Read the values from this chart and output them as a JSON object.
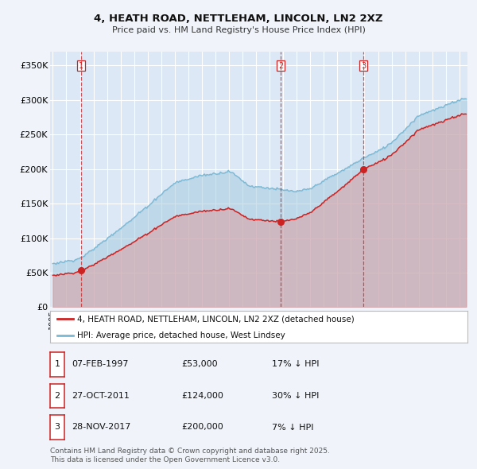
{
  "title": "4, HEATH ROAD, NETTLEHAM, LINCOLN, LN2 2XZ",
  "subtitle": "Price paid vs. HM Land Registry's House Price Index (HPI)",
  "red_line_label": "4, HEATH ROAD, NETTLEHAM, LINCOLN, LN2 2XZ (detached house)",
  "blue_line_label": "HPI: Average price, detached house, West Lindsey",
  "sale1_date": "07-FEB-1997",
  "sale1_price": 53000,
  "sale1_pct": "17% ↓ HPI",
  "sale2_date": "27-OCT-2011",
  "sale2_price": 124000,
  "sale2_pct": "30% ↓ HPI",
  "sale3_date": "28-NOV-2017",
  "sale3_price": 200000,
  "sale3_pct": "7% ↓ HPI",
  "footer1": "Contains HM Land Registry data © Crown copyright and database right 2025.",
  "footer2": "This data is licensed under the Open Government Licence v3.0.",
  "fig_bg": "#f0f4fa",
  "plot_bg": "#dce8f5",
  "grid_color": "#ffffff",
  "blue_color": "#7ab8d4",
  "red_color": "#cc2222",
  "ylim": [
    0,
    370000
  ],
  "yticks": [
    0,
    50000,
    100000,
    150000,
    200000,
    250000,
    300000,
    350000
  ],
  "ytick_labels": [
    "£0",
    "£50K",
    "£100K",
    "£150K",
    "£200K",
    "£250K",
    "£300K",
    "£350K"
  ],
  "vline1_year": 1997.1,
  "vline2_year": 2011.82,
  "vline3_year": 2017.92,
  "start_year": 1994.8,
  "end_year": 2025.6
}
